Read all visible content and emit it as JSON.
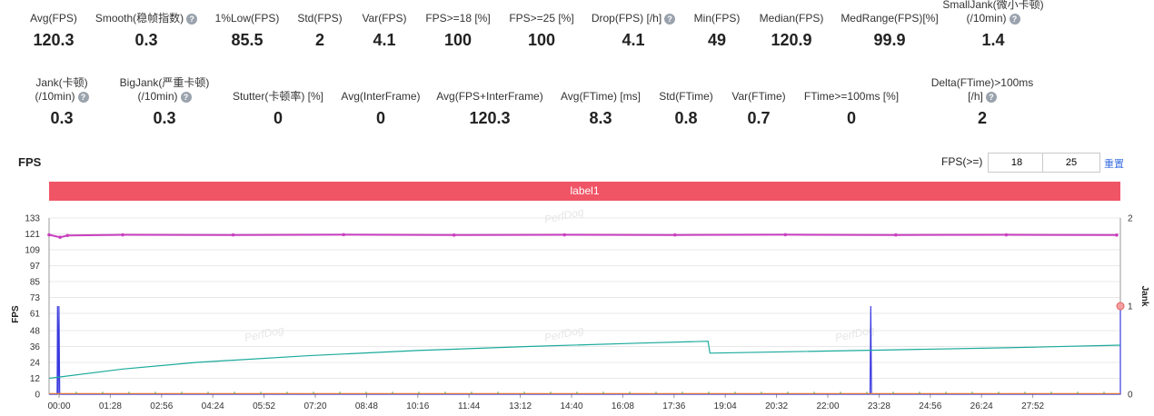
{
  "metrics_row1": [
    {
      "label": "Avg(FPS)",
      "value": "120.3",
      "help": false
    },
    {
      "label": "Smooth(稳帧指数)",
      "value": "0.3",
      "help": true
    },
    {
      "label": "1%Low(FPS)",
      "value": "85.5",
      "help": false
    },
    {
      "label": "Std(FPS)",
      "value": "2",
      "help": false
    },
    {
      "label": "Var(FPS)",
      "value": "4.1",
      "help": false
    },
    {
      "label": "FPS>=18 [%]",
      "value": "100",
      "help": false
    },
    {
      "label": "FPS>=25 [%]",
      "value": "100",
      "help": false
    },
    {
      "label": "Drop(FPS) [/h]",
      "value": "4.1",
      "help": true
    },
    {
      "label": "Min(FPS)",
      "value": "49",
      "help": false
    },
    {
      "label": "Median(FPS)",
      "value": "120.9",
      "help": false
    },
    {
      "label": "MedRange(FPS)[%]",
      "value": "99.9",
      "help": false
    },
    {
      "label": "SmallJank(微小卡顿)",
      "label2": "(/10min)",
      "value": "1.4",
      "help": true
    }
  ],
  "metrics_row2": [
    {
      "label": "Jank(卡顿)",
      "label2": "(/10min)",
      "value": "0.3",
      "help": true
    },
    {
      "label": "BigJank(严重卡顿)",
      "label2": "(/10min)",
      "value": "0.3",
      "help": true
    },
    {
      "label": "Stutter(卡顿率) [%]",
      "value": "0",
      "help": false
    },
    {
      "label": "Avg(InterFrame)",
      "value": "0",
      "help": false
    },
    {
      "label": "Avg(FPS+InterFrame)",
      "value": "120.3",
      "help": false
    },
    {
      "label": "Avg(FTime) [ms]",
      "value": "8.3",
      "help": false
    },
    {
      "label": "Std(FTime)",
      "value": "0.8",
      "help": false
    },
    {
      "label": "Var(FTime)",
      "value": "0.7",
      "help": false
    },
    {
      "label": "FTime>=100ms [%]",
      "value": "0",
      "help": false
    },
    {
      "label": "Delta(FTime)>100ms [/h]",
      "value": "2",
      "help": true
    }
  ],
  "fps_title": "FPS",
  "fps_filter_label": "FPS(>=)",
  "fps_threshold_1": "18",
  "fps_threshold_2": "25",
  "reset_label": "重置",
  "label_bar": "label1",
  "watermark": "PerfDog",
  "colors": {
    "fps": "#c93fbf",
    "jank": "#3a3ae0",
    "teal": "#1aaa9c",
    "orange": "#f07f2a",
    "green": "#4aaa44",
    "label_bar": "#f05566"
  },
  "chart_data": {
    "type": "line",
    "title": "",
    "ylabel": "FPS",
    "y2label": "Jank",
    "ylim": [
      0,
      133
    ],
    "y2lim": [
      0,
      2
    ],
    "yticks": [
      "0",
      "12",
      "24",
      "36",
      "48",
      "61",
      "73",
      "85",
      "97",
      "109",
      "121",
      "133"
    ],
    "y2ticks": [
      "0",
      "1",
      "2"
    ],
    "xticks": [
      "00:00",
      "01:28",
      "02:56",
      "04:24",
      "05:52",
      "07:20",
      "08:48",
      "10:16",
      "11:44",
      "13:12",
      "14:40",
      "16:08",
      "17:36",
      "19:04",
      "20:32",
      "22:00",
      "23:28",
      "24:56",
      "26:24",
      "27:52"
    ],
    "x_range_min": [
      0,
      29.1
    ],
    "series": [
      {
        "name": "FPS",
        "axis": "left",
        "points": [
          [
            0,
            120.3
          ],
          [
            0.3,
            118.5
          ],
          [
            0.5,
            119.8
          ],
          [
            2,
            120.3
          ],
          [
            5,
            120.2
          ],
          [
            8,
            120.4
          ],
          [
            11,
            120.1
          ],
          [
            14,
            120.3
          ],
          [
            17,
            120.2
          ],
          [
            20,
            120.4
          ],
          [
            23,
            120.2
          ],
          [
            26,
            120.3
          ],
          [
            29,
            120.1
          ]
        ]
      },
      {
        "name": "Jank",
        "axis": "right",
        "points": [
          [
            0,
            0
          ],
          [
            0.22,
            0
          ],
          [
            0.23,
            1
          ],
          [
            0.25,
            0
          ],
          [
            0.27,
            1
          ],
          [
            0.29,
            0
          ],
          [
            22.3,
            0
          ],
          [
            22.32,
            1
          ],
          [
            22.34,
            0
          ],
          [
            29.1,
            0
          ],
          [
            29.1,
            1
          ]
        ]
      },
      {
        "name": "",
        "axis": "left",
        "points": [
          [
            0,
            12
          ],
          [
            2,
            19
          ],
          [
            4,
            24
          ],
          [
            7,
            29
          ],
          [
            10,
            33
          ],
          [
            13,
            36
          ],
          [
            16,
            38.5
          ],
          [
            17.9,
            40
          ],
          [
            17.95,
            31
          ],
          [
            20,
            32
          ],
          [
            23,
            33.5
          ],
          [
            26,
            35
          ],
          [
            29.1,
            37
          ]
        ]
      },
      {
        "name": "",
        "axis": "left",
        "points": [
          [
            0,
            0.5
          ],
          [
            29.1,
            0.5
          ]
        ]
      }
    ]
  }
}
